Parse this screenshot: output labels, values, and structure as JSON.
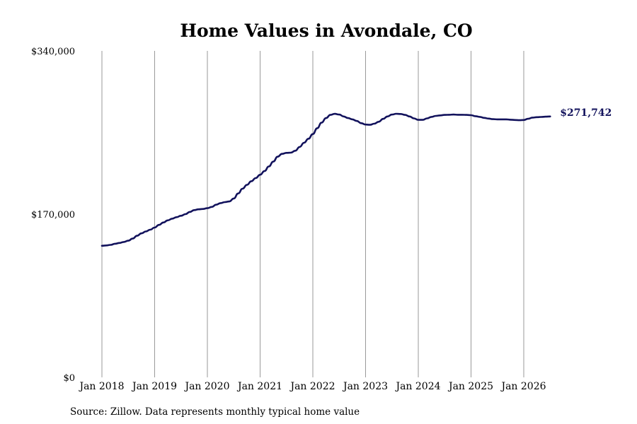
{
  "chart_data": {
    "type": "line",
    "title": "Home Values in Avondale, CO",
    "xlabel": "",
    "ylabel": "",
    "source": "Source: Zillow. Data represents monthly typical home value",
    "ylim": [
      0,
      340000
    ],
    "y_ticks": [
      {
        "value": 0,
        "label": "$0"
      },
      {
        "value": 170000,
        "label": "$170,000"
      },
      {
        "value": 340000,
        "label": "$340,000"
      }
    ],
    "x_ticks": [
      {
        "value": "2018-01",
        "label": "Jan 2018"
      },
      {
        "value": "2019-01",
        "label": "Jan 2019"
      },
      {
        "value": "2020-01",
        "label": "Jan 2020"
      },
      {
        "value": "2021-01",
        "label": "Jan 2021"
      },
      {
        "value": "2022-01",
        "label": "Jan 2022"
      },
      {
        "value": "2023-01",
        "label": "Jan 2023"
      },
      {
        "value": "2024-01",
        "label": "Jan 2024"
      },
      {
        "value": "2025-01",
        "label": "Jan 2025"
      },
      {
        "value": "2026-01",
        "label": "Jan 2026"
      }
    ],
    "grid": "vertical",
    "end_label": "$271,742",
    "series": [
      {
        "name": "",
        "color": "#12125c",
        "points": [
          [
            "2018-01",
            137000
          ],
          [
            "2018-02",
            137400
          ],
          [
            "2018-03",
            138000
          ],
          [
            "2018-04",
            139200
          ],
          [
            "2018-05",
            140000
          ],
          [
            "2018-06",
            141000
          ],
          [
            "2018-07",
            142300
          ],
          [
            "2018-08",
            144500
          ],
          [
            "2018-09",
            147500
          ],
          [
            "2018-10",
            150000
          ],
          [
            "2018-11",
            152000
          ],
          [
            "2018-12",
            153800
          ],
          [
            "2019-01",
            156000
          ],
          [
            "2019-02",
            158800
          ],
          [
            "2019-03",
            161300
          ],
          [
            "2019-04",
            163500
          ],
          [
            "2019-05",
            165300
          ],
          [
            "2019-06",
            166800
          ],
          [
            "2019-07",
            168300
          ],
          [
            "2019-08",
            170000
          ],
          [
            "2019-09",
            172300
          ],
          [
            "2019-10",
            174200
          ],
          [
            "2019-11",
            175000
          ],
          [
            "2019-12",
            175400
          ],
          [
            "2020-01",
            176200
          ],
          [
            "2020-02",
            177500
          ],
          [
            "2020-03",
            179800
          ],
          [
            "2020-04",
            181500
          ],
          [
            "2020-05",
            182500
          ],
          [
            "2020-06",
            183200
          ],
          [
            "2020-07",
            186300
          ],
          [
            "2020-08",
            191500
          ],
          [
            "2020-09",
            196500
          ],
          [
            "2020-10",
            200500
          ],
          [
            "2020-11",
            204300
          ],
          [
            "2020-12",
            207500
          ],
          [
            "2021-01",
            211000
          ],
          [
            "2021-02",
            214800
          ],
          [
            "2021-03",
            219700
          ],
          [
            "2021-04",
            224700
          ],
          [
            "2021-05",
            229800
          ],
          [
            "2021-06",
            232800
          ],
          [
            "2021-07",
            233800
          ],
          [
            "2021-08",
            234000
          ],
          [
            "2021-09",
            236000
          ],
          [
            "2021-10",
            240000
          ],
          [
            "2021-11",
            244300
          ],
          [
            "2021-12",
            248500
          ],
          [
            "2022-01",
            253400
          ],
          [
            "2022-02",
            259500
          ],
          [
            "2022-03",
            265300
          ],
          [
            "2022-04",
            270000
          ],
          [
            "2022-05",
            273300
          ],
          [
            "2022-06",
            274400
          ],
          [
            "2022-07",
            273700
          ],
          [
            "2022-08",
            271700
          ],
          [
            "2022-09",
            270000
          ],
          [
            "2022-10",
            268700
          ],
          [
            "2022-11",
            267000
          ],
          [
            "2022-12",
            264700
          ],
          [
            "2023-01",
            263300
          ],
          [
            "2023-02",
            263000
          ],
          [
            "2023-03",
            264200
          ],
          [
            "2023-04",
            266200
          ],
          [
            "2023-05",
            269200
          ],
          [
            "2023-06",
            271700
          ],
          [
            "2023-07",
            273700
          ],
          [
            "2023-08",
            274500
          ],
          [
            "2023-09",
            274300
          ],
          [
            "2023-10",
            273300
          ],
          [
            "2023-11",
            271700
          ],
          [
            "2023-12",
            269700
          ],
          [
            "2024-01",
            268200
          ],
          [
            "2024-02",
            268200
          ],
          [
            "2024-03",
            269700
          ],
          [
            "2024-04",
            271300
          ],
          [
            "2024-05",
            272300
          ],
          [
            "2024-06",
            272800
          ],
          [
            "2024-07",
            273300
          ],
          [
            "2024-08",
            273500
          ],
          [
            "2024-09",
            273700
          ],
          [
            "2024-10",
            273500
          ],
          [
            "2024-11",
            273500
          ],
          [
            "2024-12",
            273300
          ],
          [
            "2025-01",
            273000
          ],
          [
            "2025-02",
            272000
          ],
          [
            "2025-03",
            271300
          ],
          [
            "2025-04",
            270200
          ],
          [
            "2025-05",
            269500
          ],
          [
            "2025-06",
            268900
          ],
          [
            "2025-07",
            268700
          ],
          [
            "2025-08",
            268700
          ],
          [
            "2025-09",
            268700
          ],
          [
            "2025-10",
            268300
          ],
          [
            "2025-11",
            268000
          ],
          [
            "2025-12",
            267800
          ],
          [
            "2026-01",
            268000
          ],
          [
            "2026-02",
            269300
          ],
          [
            "2026-03",
            270500
          ],
          [
            "2026-04",
            271000
          ],
          [
            "2026-05",
            271200
          ],
          [
            "2026-06",
            271500
          ],
          [
            "2026-07",
            271742
          ]
        ]
      }
    ]
  }
}
